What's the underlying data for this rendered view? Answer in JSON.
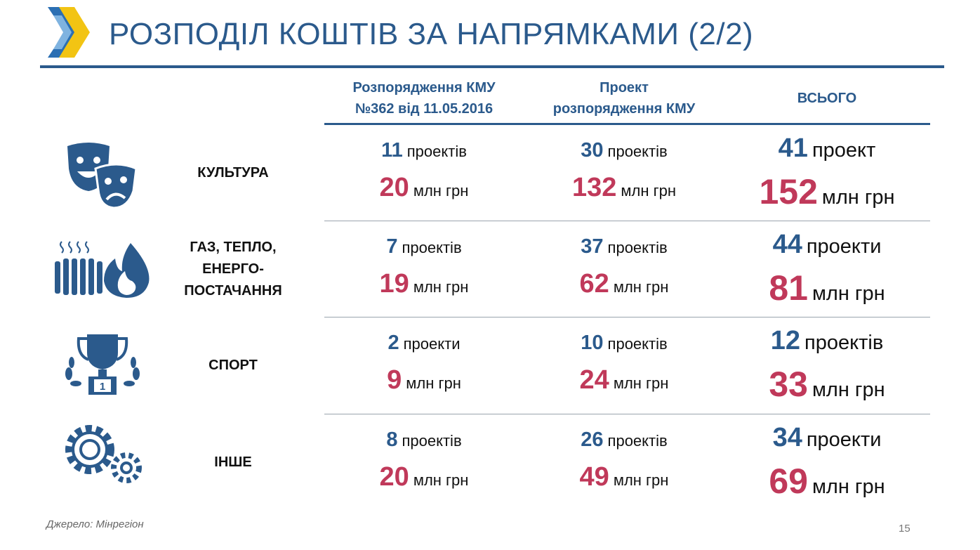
{
  "header": {
    "title": "РОЗПОДІЛ КОШТІВ ЗА НАПРЯМКАМИ (2/2)"
  },
  "table": {
    "columns": [
      [
        "Розпорядження КМУ",
        "№362 від 11.05.2016"
      ],
      [
        "Проект",
        "розпорядження КМУ"
      ],
      [
        "ВСЬОГО"
      ]
    ],
    "rows": [
      {
        "label": [
          "КУЛЬТУРА"
        ],
        "cells": [
          {
            "count": 11,
            "count_unit": "проектів",
            "amount": 20,
            "amount_unit": "млн грн"
          },
          {
            "count": 30,
            "count_unit": "проектів",
            "amount": 132,
            "amount_unit": "млн грн"
          },
          {
            "count": 41,
            "count_unit": "проект",
            "amount": 152,
            "amount_unit": "млн грн"
          }
        ]
      },
      {
        "label": [
          "ГАЗ, ТЕПЛО,",
          "ЕНЕРГО-",
          "ПОСТАЧАННЯ"
        ],
        "cells": [
          {
            "count": 7,
            "count_unit": "проектів",
            "amount": 19,
            "amount_unit": "млн грн"
          },
          {
            "count": 37,
            "count_unit": "проектів",
            "amount": 62,
            "amount_unit": "млн грн"
          },
          {
            "count": 44,
            "count_unit": "проекти",
            "amount": 81,
            "amount_unit": "млн грн"
          }
        ]
      },
      {
        "label": [
          "СПОРТ"
        ],
        "cells": [
          {
            "count": 2,
            "count_unit": "проекти",
            "amount": 9,
            "amount_unit": "млн грн"
          },
          {
            "count": 10,
            "count_unit": "проектів",
            "amount": 24,
            "amount_unit": "млн грн"
          },
          {
            "count": 12,
            "count_unit": "проектів",
            "amount": 33,
            "amount_unit": "млн грн"
          }
        ]
      },
      {
        "label": [
          "ІНШЕ"
        ],
        "cells": [
          {
            "count": 8,
            "count_unit": "проектів",
            "amount": 20,
            "amount_unit": "млн грн"
          },
          {
            "count": 26,
            "count_unit": "проектів",
            "amount": 49,
            "amount_unit": "млн грн"
          },
          {
            "count": 34,
            "count_unit": "проекти",
            "amount": 69,
            "amount_unit": "млн грн"
          }
        ]
      }
    ]
  },
  "footer": {
    "source": "Джерело: Мінрегіон",
    "page": 15
  }
}
